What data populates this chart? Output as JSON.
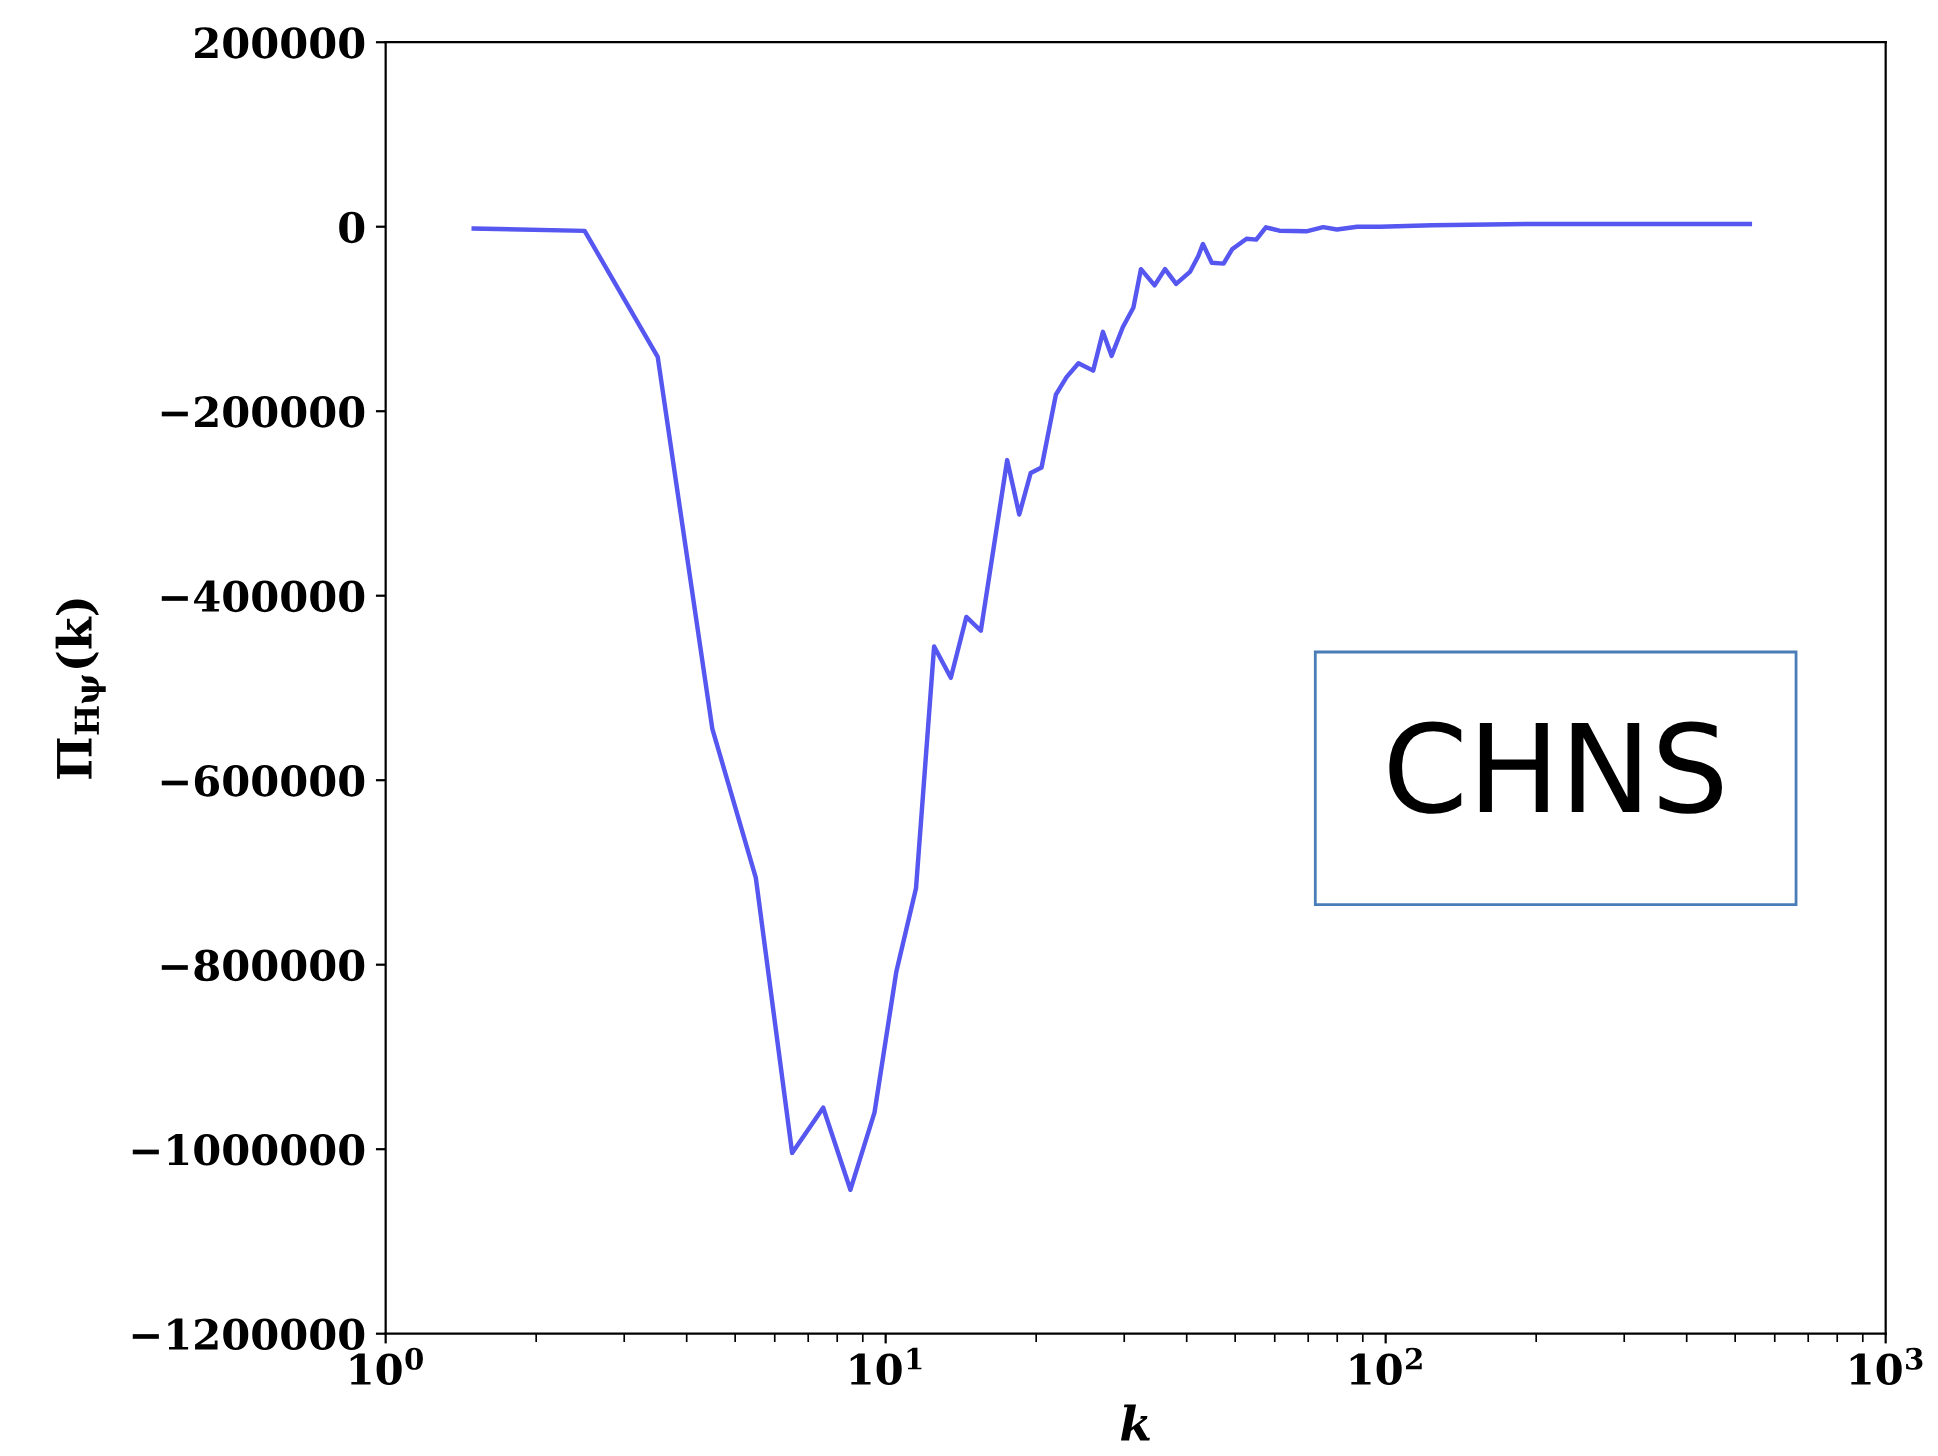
{
  "chart_data": {
    "type": "line",
    "xlabel": "k",
    "ylabel": "Π$_{Hψ}$(k)",
    "log": "x",
    "xlim": [
      1,
      1000
    ],
    "xticks": [
      {
        "value": 1,
        "label": "10$^{0}$"
      },
      {
        "value": 10,
        "label": "10$^{1}$"
      },
      {
        "value": 100,
        "label": "10$^{2}$"
      },
      {
        "value": 1000,
        "label": "10$^{3}$"
      }
    ],
    "ylim": [
      -1200000,
      200000
    ],
    "yticks": [
      -1200000,
      -1000000,
      -800000,
      -600000,
      -400000,
      -200000,
      0,
      200000
    ],
    "grid": false,
    "marker": "none",
    "line_style": "solid",
    "annotations": [
      "CHNS"
    ],
    "series": [
      {
        "color": "#5656f0",
        "x": [
          1.5,
          2.5,
          3.5,
          4.5,
          5.5,
          6.5,
          7.5,
          8.5,
          9.5,
          10.5,
          11.5,
          12.5,
          13.5,
          14.5,
          15.5,
          17.5,
          18.5,
          19.5,
          20.5,
          21.9,
          23.0,
          24.3,
          26.0,
          27.2,
          28.3,
          29.8,
          31.3,
          32.4,
          34.5,
          36.2,
          38.1,
          40.6,
          42.2,
          43.1,
          44.9,
          47.4,
          49.3,
          52.7,
          55.1,
          57.6,
          61.3,
          69.4,
          75.0,
          79.9,
          87.7,
          97.4,
          124,
          197,
          535
        ],
        "values": [
          -2000,
          -4500,
          -141000,
          -544000,
          -706000,
          -1004000,
          -955000,
          -1044000,
          -960000,
          -808000,
          -717000,
          -455000,
          -489000,
          -423000,
          -438000,
          -253000,
          -312000,
          -267000,
          -261000,
          -182000,
          -163000,
          -148000,
          -156000,
          -114000,
          -140000,
          -109000,
          -87500,
          -46000,
          -63600,
          -46000,
          -62000,
          -49000,
          -31700,
          -18700,
          -39000,
          -40000,
          -24500,
          -13000,
          -14000,
          -650,
          -4300,
          -5000,
          -500,
          -3000,
          0,
          0,
          1500,
          3000,
          3000
        ]
      }
    ]
  }
}
